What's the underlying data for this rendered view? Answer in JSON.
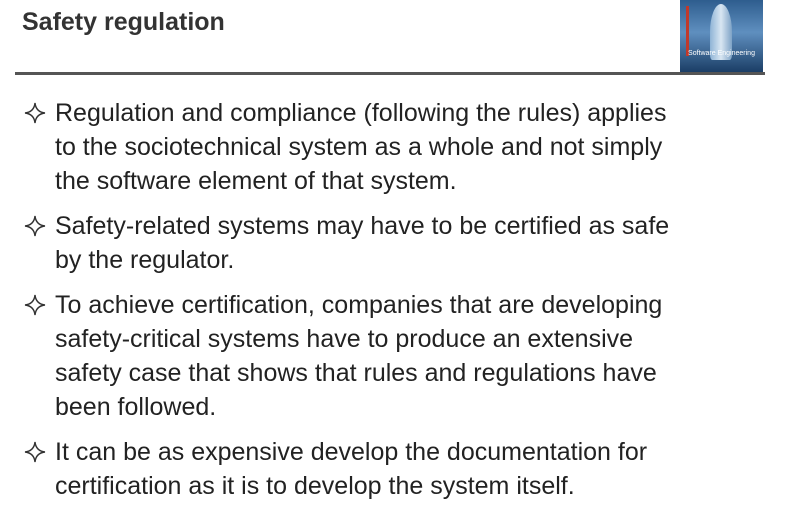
{
  "header": {
    "title": "Safety regulation",
    "cover_text": "Software Engineering"
  },
  "bullets": [
    [
      "Regulation and compliance (following the rules) applies",
      "to the sociotechnical system as a whole and not simply",
      "the software element of that system."
    ],
    [
      "Safety-related systems may have to be certified as safe",
      "by the regulator."
    ],
    [
      "To achieve certification, companies that are developing",
      "safety-critical systems have to produce an extensive",
      "safety case that shows that rules and regulations have",
      "been followed."
    ],
    [
      "It can be as expensive develop the documentation for",
      "certification as it is to develop the system itself."
    ]
  ]
}
